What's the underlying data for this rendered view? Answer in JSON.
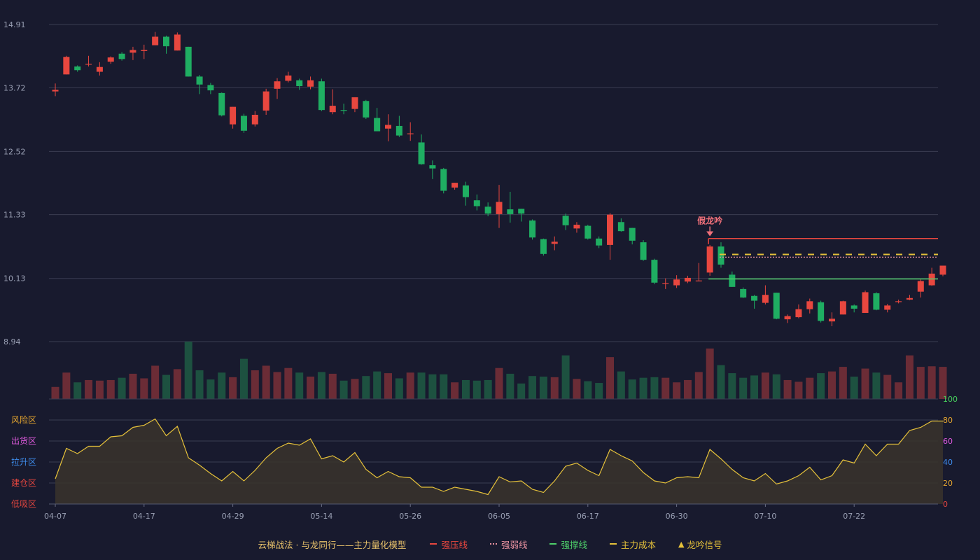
{
  "chart_data": {
    "type": "candlestick",
    "colors": {
      "background": "#181a2e",
      "grid": "#3a3d52",
      "up": "#e8473f",
      "down": "#1fae62",
      "vol_up": "#6b2c36",
      "vol_down": "#1d5140",
      "oscillator_line": "#e5c13a",
      "oscillator_fill": "#3a342c",
      "pressure_line": "#e8473f",
      "weak_line": "#e7919f",
      "support_line": "#4ed06a",
      "cost_line": "#e5c13a"
    },
    "price_axis": {
      "ticks": [
        "14.91",
        "13.72",
        "12.52",
        "11.33",
        "10.13",
        "8.94"
      ],
      "min": 8.94,
      "max": 14.91
    },
    "x_axis": {
      "ticks": [
        {
          "index": 0,
          "label": "04-07"
        },
        {
          "index": 8,
          "label": "04-17"
        },
        {
          "index": 16,
          "label": "04-29"
        },
        {
          "index": 24,
          "label": "05-14"
        },
        {
          "index": 32,
          "label": "05-26"
        },
        {
          "index": 40,
          "label": "06-05"
        },
        {
          "index": 48,
          "label": "06-17"
        },
        {
          "index": 56,
          "label": "06-30"
        },
        {
          "index": 64,
          "label": "07-10"
        },
        {
          "index": 72,
          "label": "07-22"
        }
      ]
    },
    "candles": [
      [
        13.65,
        13.68,
        13.8,
        13.56
      ],
      [
        13.97,
        14.3,
        14.32,
        13.97
      ],
      [
        14.12,
        14.05,
        14.14,
        14.02
      ],
      [
        14.16,
        14.17,
        14.32,
        14.12
      ],
      [
        14.02,
        14.11,
        14.2,
        13.95
      ],
      [
        14.21,
        14.29,
        14.31,
        14.17
      ],
      [
        14.36,
        14.26,
        14.39,
        14.23
      ],
      [
        14.38,
        14.43,
        14.49,
        14.24
      ],
      [
        14.41,
        14.43,
        14.53,
        14.26
      ],
      [
        14.52,
        14.68,
        14.77,
        14.52
      ],
      [
        14.68,
        14.5,
        14.7,
        14.36
      ],
      [
        14.42,
        14.72,
        14.76,
        14.42
      ],
      [
        14.49,
        13.93,
        14.49,
        13.93
      ],
      [
        13.93,
        13.78,
        13.96,
        13.6
      ],
      [
        13.77,
        13.67,
        13.81,
        13.6
      ],
      [
        13.62,
        13.2,
        13.63,
        13.18
      ],
      [
        13.03,
        13.36,
        13.36,
        12.95
      ],
      [
        13.19,
        12.91,
        13.23,
        12.87
      ],
      [
        13.03,
        13.21,
        13.28,
        12.99
      ],
      [
        13.29,
        13.65,
        13.7,
        13.21
      ],
      [
        13.7,
        13.84,
        13.9,
        13.51
      ],
      [
        13.85,
        13.95,
        14.02,
        13.82
      ],
      [
        13.86,
        13.75,
        13.89,
        13.68
      ],
      [
        13.74,
        13.86,
        13.93,
        13.69
      ],
      [
        13.84,
        13.3,
        13.89,
        13.28
      ],
      [
        13.26,
        13.38,
        13.69,
        13.22
      ],
      [
        13.3,
        13.29,
        13.42,
        13.22
      ],
      [
        13.32,
        13.54,
        13.54,
        13.26
      ],
      [
        13.47,
        13.16,
        13.49,
        13.13
      ],
      [
        13.15,
        12.9,
        13.34,
        12.9
      ],
      [
        12.95,
        13.02,
        13.22,
        12.71
      ],
      [
        13.0,
        12.82,
        13.19,
        12.79
      ],
      [
        12.86,
        12.86,
        13.07,
        12.72
      ],
      [
        12.69,
        12.28,
        12.84,
        12.27
      ],
      [
        12.26,
        12.2,
        12.35,
        12.0
      ],
      [
        12.19,
        11.78,
        12.21,
        11.73
      ],
      [
        11.84,
        11.93,
        11.93,
        11.8
      ],
      [
        11.88,
        11.66,
        11.95,
        11.5
      ],
      [
        11.6,
        11.49,
        11.71,
        11.41
      ],
      [
        11.48,
        11.35,
        11.56,
        11.3
      ],
      [
        11.34,
        11.57,
        11.89,
        11.08
      ],
      [
        11.43,
        11.34,
        11.76,
        11.18
      ],
      [
        11.44,
        11.35,
        11.44,
        11.2
      ],
      [
        11.22,
        10.9,
        11.24,
        10.86
      ],
      [
        10.87,
        10.59,
        10.88,
        10.56
      ],
      [
        10.78,
        10.82,
        10.92,
        10.66
      ],
      [
        11.31,
        11.13,
        11.35,
        11.04
      ],
      [
        11.07,
        11.14,
        11.19,
        10.99
      ],
      [
        11.12,
        10.88,
        11.14,
        10.86
      ],
      [
        10.88,
        10.75,
        10.92,
        10.7
      ],
      [
        10.76,
        11.33,
        11.36,
        10.48
      ],
      [
        11.19,
        11.02,
        11.26,
        11.01
      ],
      [
        11.08,
        10.84,
        11.08,
        10.77
      ],
      [
        10.81,
        10.48,
        10.85,
        10.46
      ],
      [
        10.48,
        10.05,
        10.5,
        10.02
      ],
      [
        10.04,
        10.04,
        10.13,
        9.93
      ],
      [
        10.0,
        10.11,
        10.19,
        9.95
      ],
      [
        10.07,
        10.14,
        10.18,
        10.04
      ],
      [
        10.09,
        10.09,
        10.42,
        10.09
      ],
      [
        10.24,
        10.73,
        10.76,
        10.18
      ],
      [
        10.73,
        10.39,
        10.81,
        10.33
      ],
      [
        10.2,
        9.97,
        10.26,
        9.97
      ],
      [
        9.93,
        9.77,
        9.96,
        9.76
      ],
      [
        9.8,
        9.71,
        9.82,
        9.56
      ],
      [
        9.67,
        9.82,
        10.0,
        9.64
      ],
      [
        9.86,
        9.37,
        9.86,
        9.36
      ],
      [
        9.36,
        9.42,
        9.45,
        9.29
      ],
      [
        9.4,
        9.55,
        9.64,
        9.38
      ],
      [
        9.55,
        9.7,
        9.75,
        9.47
      ],
      [
        9.68,
        9.33,
        9.71,
        9.3
      ],
      [
        9.32,
        9.37,
        9.49,
        9.23
      ],
      [
        9.45,
        9.7,
        9.71,
        9.45
      ],
      [
        9.62,
        9.56,
        9.64,
        9.49
      ],
      [
        9.48,
        9.87,
        9.9,
        9.48
      ],
      [
        9.85,
        9.54,
        9.87,
        9.53
      ],
      [
        9.54,
        9.62,
        9.65,
        9.49
      ],
      [
        9.7,
        9.7,
        9.73,
        9.66
      ],
      [
        9.73,
        9.76,
        9.82,
        9.72
      ],
      [
        9.88,
        10.08,
        10.11,
        9.77
      ],
      [
        10.0,
        10.22,
        10.33,
        9.99
      ],
      [
        10.2,
        10.37,
        10.37,
        10.17
      ]
    ],
    "volume": [
      0.21,
      0.46,
      0.29,
      0.33,
      0.32,
      0.33,
      0.37,
      0.44,
      0.36,
      0.58,
      0.42,
      0.52,
      1.0,
      0.5,
      0.34,
      0.46,
      0.38,
      0.7,
      0.5,
      0.58,
      0.47,
      0.54,
      0.46,
      0.39,
      0.47,
      0.44,
      0.32,
      0.35,
      0.4,
      0.48,
      0.45,
      0.36,
      0.46,
      0.46,
      0.43,
      0.43,
      0.29,
      0.33,
      0.32,
      0.33,
      0.54,
      0.44,
      0.27,
      0.4,
      0.39,
      0.38,
      0.76,
      0.35,
      0.31,
      0.28,
      0.73,
      0.48,
      0.34,
      0.37,
      0.38,
      0.37,
      0.29,
      0.33,
      0.47,
      0.88,
      0.59,
      0.45,
      0.37,
      0.41,
      0.46,
      0.43,
      0.33,
      0.3,
      0.37,
      0.45,
      0.48,
      0.56,
      0.39,
      0.53,
      0.46,
      0.42,
      0.29,
      0.76,
      0.56,
      0.57,
      0.56
    ],
    "zones": {
      "left_labels": [
        {
          "text": "风险区",
          "color": "#e8a82f",
          "value": 80
        },
        {
          "text": "出货区",
          "color": "#e25be0",
          "value": 60
        },
        {
          "text": "拉升区",
          "color": "#3f8ff0",
          "value": 40
        },
        {
          "text": "建仓区",
          "color": "#e8473f",
          "value": 20
        },
        {
          "text": "低吸区",
          "color": "#e8473f",
          "value": 0
        }
      ],
      "right_ticks": [
        {
          "text": "100",
          "color": "#47d35d",
          "value": 100
        },
        {
          "text": "80",
          "color": "#e8a82f",
          "value": 80
        },
        {
          "text": "60",
          "color": "#e25be0",
          "value": 60
        },
        {
          "text": "40",
          "color": "#3f8ff0",
          "value": 40
        },
        {
          "text": "20",
          "color": "#e8a82f",
          "value": 20
        },
        {
          "text": "0",
          "color": "#e8473f",
          "value": 0
        }
      ]
    },
    "oscillator": [
      24,
      53,
      48,
      55,
      55,
      64,
      65,
      73,
      75,
      81,
      65,
      74,
      44,
      37,
      29,
      22,
      31,
      22,
      32,
      44,
      53,
      58,
      56,
      62,
      43,
      46,
      40,
      49,
      33,
      25,
      31,
      26,
      25,
      16,
      16,
      12,
      16,
      14,
      12,
      9,
      26,
      21,
      22,
      14,
      11,
      22,
      36,
      39,
      32,
      27,
      52,
      46,
      41,
      30,
      22,
      20,
      25,
      26,
      25,
      52,
      43,
      33,
      25,
      22,
      29,
      19,
      22,
      27,
      35,
      23,
      27,
      42,
      39,
      57,
      46,
      57,
      57,
      70,
      73,
      79,
      79
    ],
    "signal": {
      "label": "假龙吟",
      "index": 59,
      "value": 10.95
    },
    "levels": [
      {
        "name": "strong_pressure",
        "value": 10.88,
        "from": 59,
        "style": "solid",
        "color": "#e8473f"
      },
      {
        "name": "main_cost",
        "value": 10.58,
        "from": 60,
        "style": "dashed",
        "color": "#e5c13a"
      },
      {
        "name": "strong_weak",
        "value": 10.53,
        "from": 60,
        "style": "dotted",
        "color": "#e7919f"
      },
      {
        "name": "strong_support",
        "value": 10.12,
        "from": 59,
        "style": "solid",
        "color": "#4ed06a"
      }
    ]
  },
  "legend": {
    "model": {
      "text": "云梯战法 · 与龙同行——主力量化模型",
      "color": "#e6c06a"
    },
    "items": [
      {
        "text": "强压线",
        "color": "#e8473f",
        "style": "solid"
      },
      {
        "text": "强弱线",
        "color": "#e7919f",
        "style": "dotted"
      },
      {
        "text": "强撑线",
        "color": "#4ed06a",
        "style": "solid"
      },
      {
        "text": "主力成本",
        "color": "#e5c13a",
        "style": "dashed"
      },
      {
        "text": "龙吟信号",
        "color": "#e5c13a",
        "style": "triangle"
      }
    ]
  }
}
